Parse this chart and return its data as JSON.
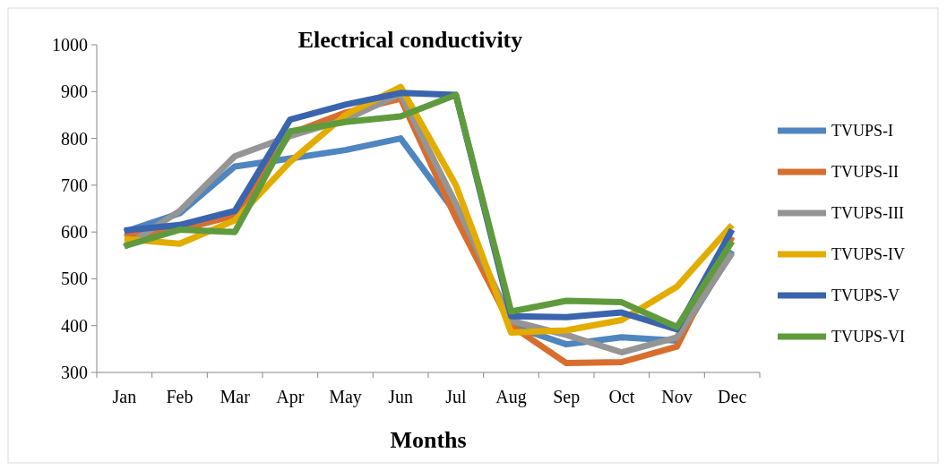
{
  "chart_data": {
    "type": "line",
    "title": "Electrical conductivity",
    "xlabel": "Months",
    "categories": [
      "Jan",
      "Feb",
      "Mar",
      "Apr",
      "May",
      "Jun",
      "Jul",
      "Aug",
      "Sep",
      "Oct",
      "Nov",
      "Dec"
    ],
    "ylim": [
      300,
      1000
    ],
    "yticks": [
      300,
      400,
      500,
      600,
      700,
      800,
      900,
      1000
    ],
    "grid": false,
    "legend": "right",
    "marker": "none",
    "line_style": "solid",
    "series": [
      {
        "name": "TVUPS-I",
        "color": "#4f86c0",
        "values": [
          600,
          640,
          740,
          757,
          775,
          800,
          640,
          400,
          360,
          375,
          368,
          560
        ]
      },
      {
        "name": "TVUPS-II",
        "color": "#d86e2e",
        "values": [
          590,
          605,
          635,
          810,
          855,
          885,
          630,
          400,
          320,
          322,
          355,
          590
        ]
      },
      {
        "name": "TVUPS-III",
        "color": "#959595",
        "values": [
          568,
          645,
          762,
          805,
          840,
          895,
          660,
          410,
          380,
          343,
          375,
          555
        ]
      },
      {
        "name": "TVUPS-IV",
        "color": "#e3ac00",
        "values": [
          585,
          575,
          625,
          750,
          850,
          910,
          700,
          385,
          390,
          412,
          483,
          615
        ]
      },
      {
        "name": "TVUPS-V",
        "color": "#3a64ad",
        "values": [
          603,
          615,
          645,
          840,
          872,
          897,
          893,
          420,
          418,
          428,
          392,
          605
        ]
      },
      {
        "name": "TVUPS-VI",
        "color": "#5f9b3d",
        "values": [
          570,
          605,
          600,
          815,
          835,
          847,
          893,
          430,
          453,
          450,
          397,
          580
        ]
      }
    ]
  }
}
